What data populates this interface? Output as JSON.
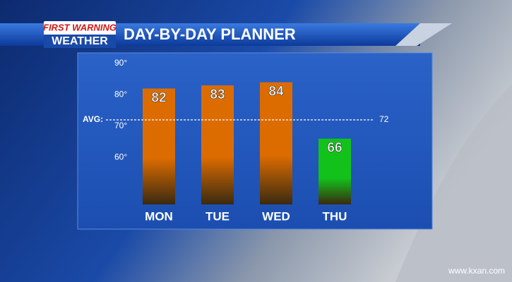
{
  "logo": {
    "line1": "FIRST WARNING",
    "line2": "WEATHER"
  },
  "website": "www.kxan.com",
  "chart_data": {
    "type": "bar",
    "title": "DAY-BY-DAY PLANNER",
    "categories": [
      "MON",
      "TUE",
      "WED",
      "THU"
    ],
    "values": [
      82,
      83,
      84,
      66
    ],
    "colors": [
      "#dc6c00",
      "#dc6c00",
      "#dc6c00",
      "#12c21a"
    ],
    "ylim": [
      45,
      90
    ],
    "yticks": [
      {
        "value": 60,
        "label": "60°"
      },
      {
        "value": 70,
        "label": "70°"
      },
      {
        "value": 80,
        "label": "80°"
      },
      {
        "value": 90,
        "label": "90°"
      }
    ],
    "average": {
      "label": "AVG:",
      "value": 72
    }
  }
}
